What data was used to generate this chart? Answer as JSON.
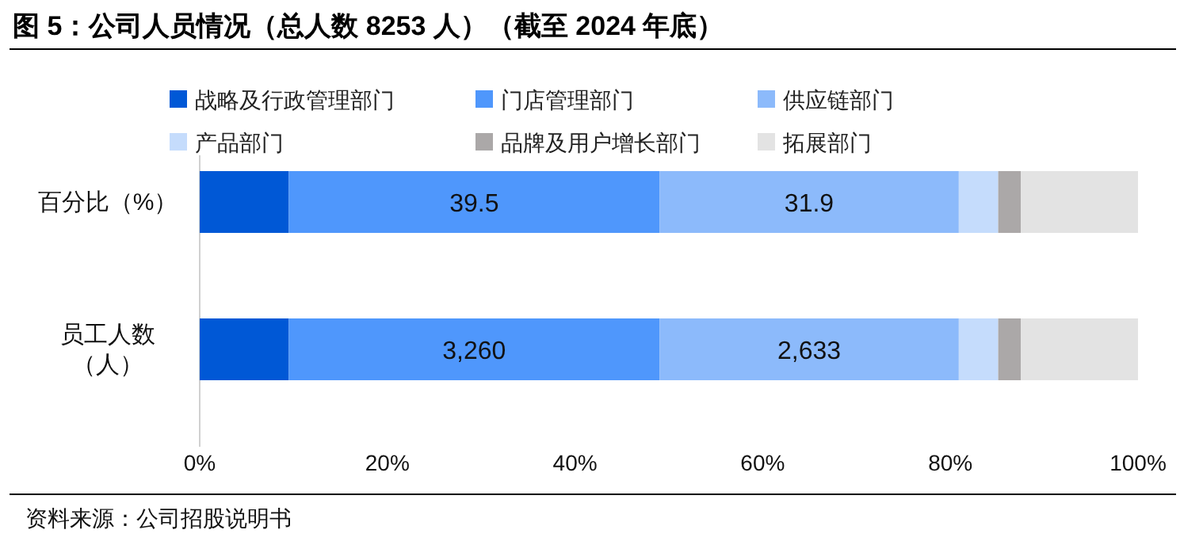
{
  "chart_data": {
    "type": "bar",
    "orientation": "horizontal",
    "stacked": true,
    "title": "图 5：公司人员情况（总人数 8253 人）（截至 2024 年底）",
    "categories": [
      "百分比（%）",
      "员工人数（人）"
    ],
    "series": [
      {
        "name": "战略及行政管理部门",
        "color": "#0058d6",
        "values": [
          9.5,
          9.5
        ]
      },
      {
        "name": "门店管理部门",
        "color": "#4f97fc",
        "values": [
          39.5,
          39.5
        ],
        "value_labels": [
          "39.5",
          null
        ]
      },
      {
        "name": "供应链部门",
        "color": "#8cbafb",
        "values": [
          31.9,
          31.9
        ],
        "value_labels": [
          "31.9",
          null
        ]
      },
      {
        "name": "产品部门",
        "color": "#c5dcfc",
        "values": [
          4.2,
          4.2
        ]
      },
      {
        "name": "品牌及用户增长部门",
        "color": "#aba8a8",
        "values": [
          2.4,
          2.4
        ]
      },
      {
        "name": "拓展部门",
        "color": "#e3e3e3",
        "values": [
          12.5,
          12.5
        ]
      }
    ],
    "xlim": [
      0,
      100
    ],
    "xticks": [
      {
        "value": 0,
        "label": "0%"
      },
      {
        "value": 20,
        "label": "20%"
      },
      {
        "value": 40,
        "label": "40%"
      },
      {
        "value": 60,
        "label": "60%"
      },
      {
        "value": 80,
        "label": "80%"
      },
      {
        "value": 100,
        "label": "100%"
      }
    ],
    "legend": "top",
    "grid": false,
    "annotations": [
      "3,260",
      "2,633",
      "资料来源：公司招股说明书"
    ]
  }
}
